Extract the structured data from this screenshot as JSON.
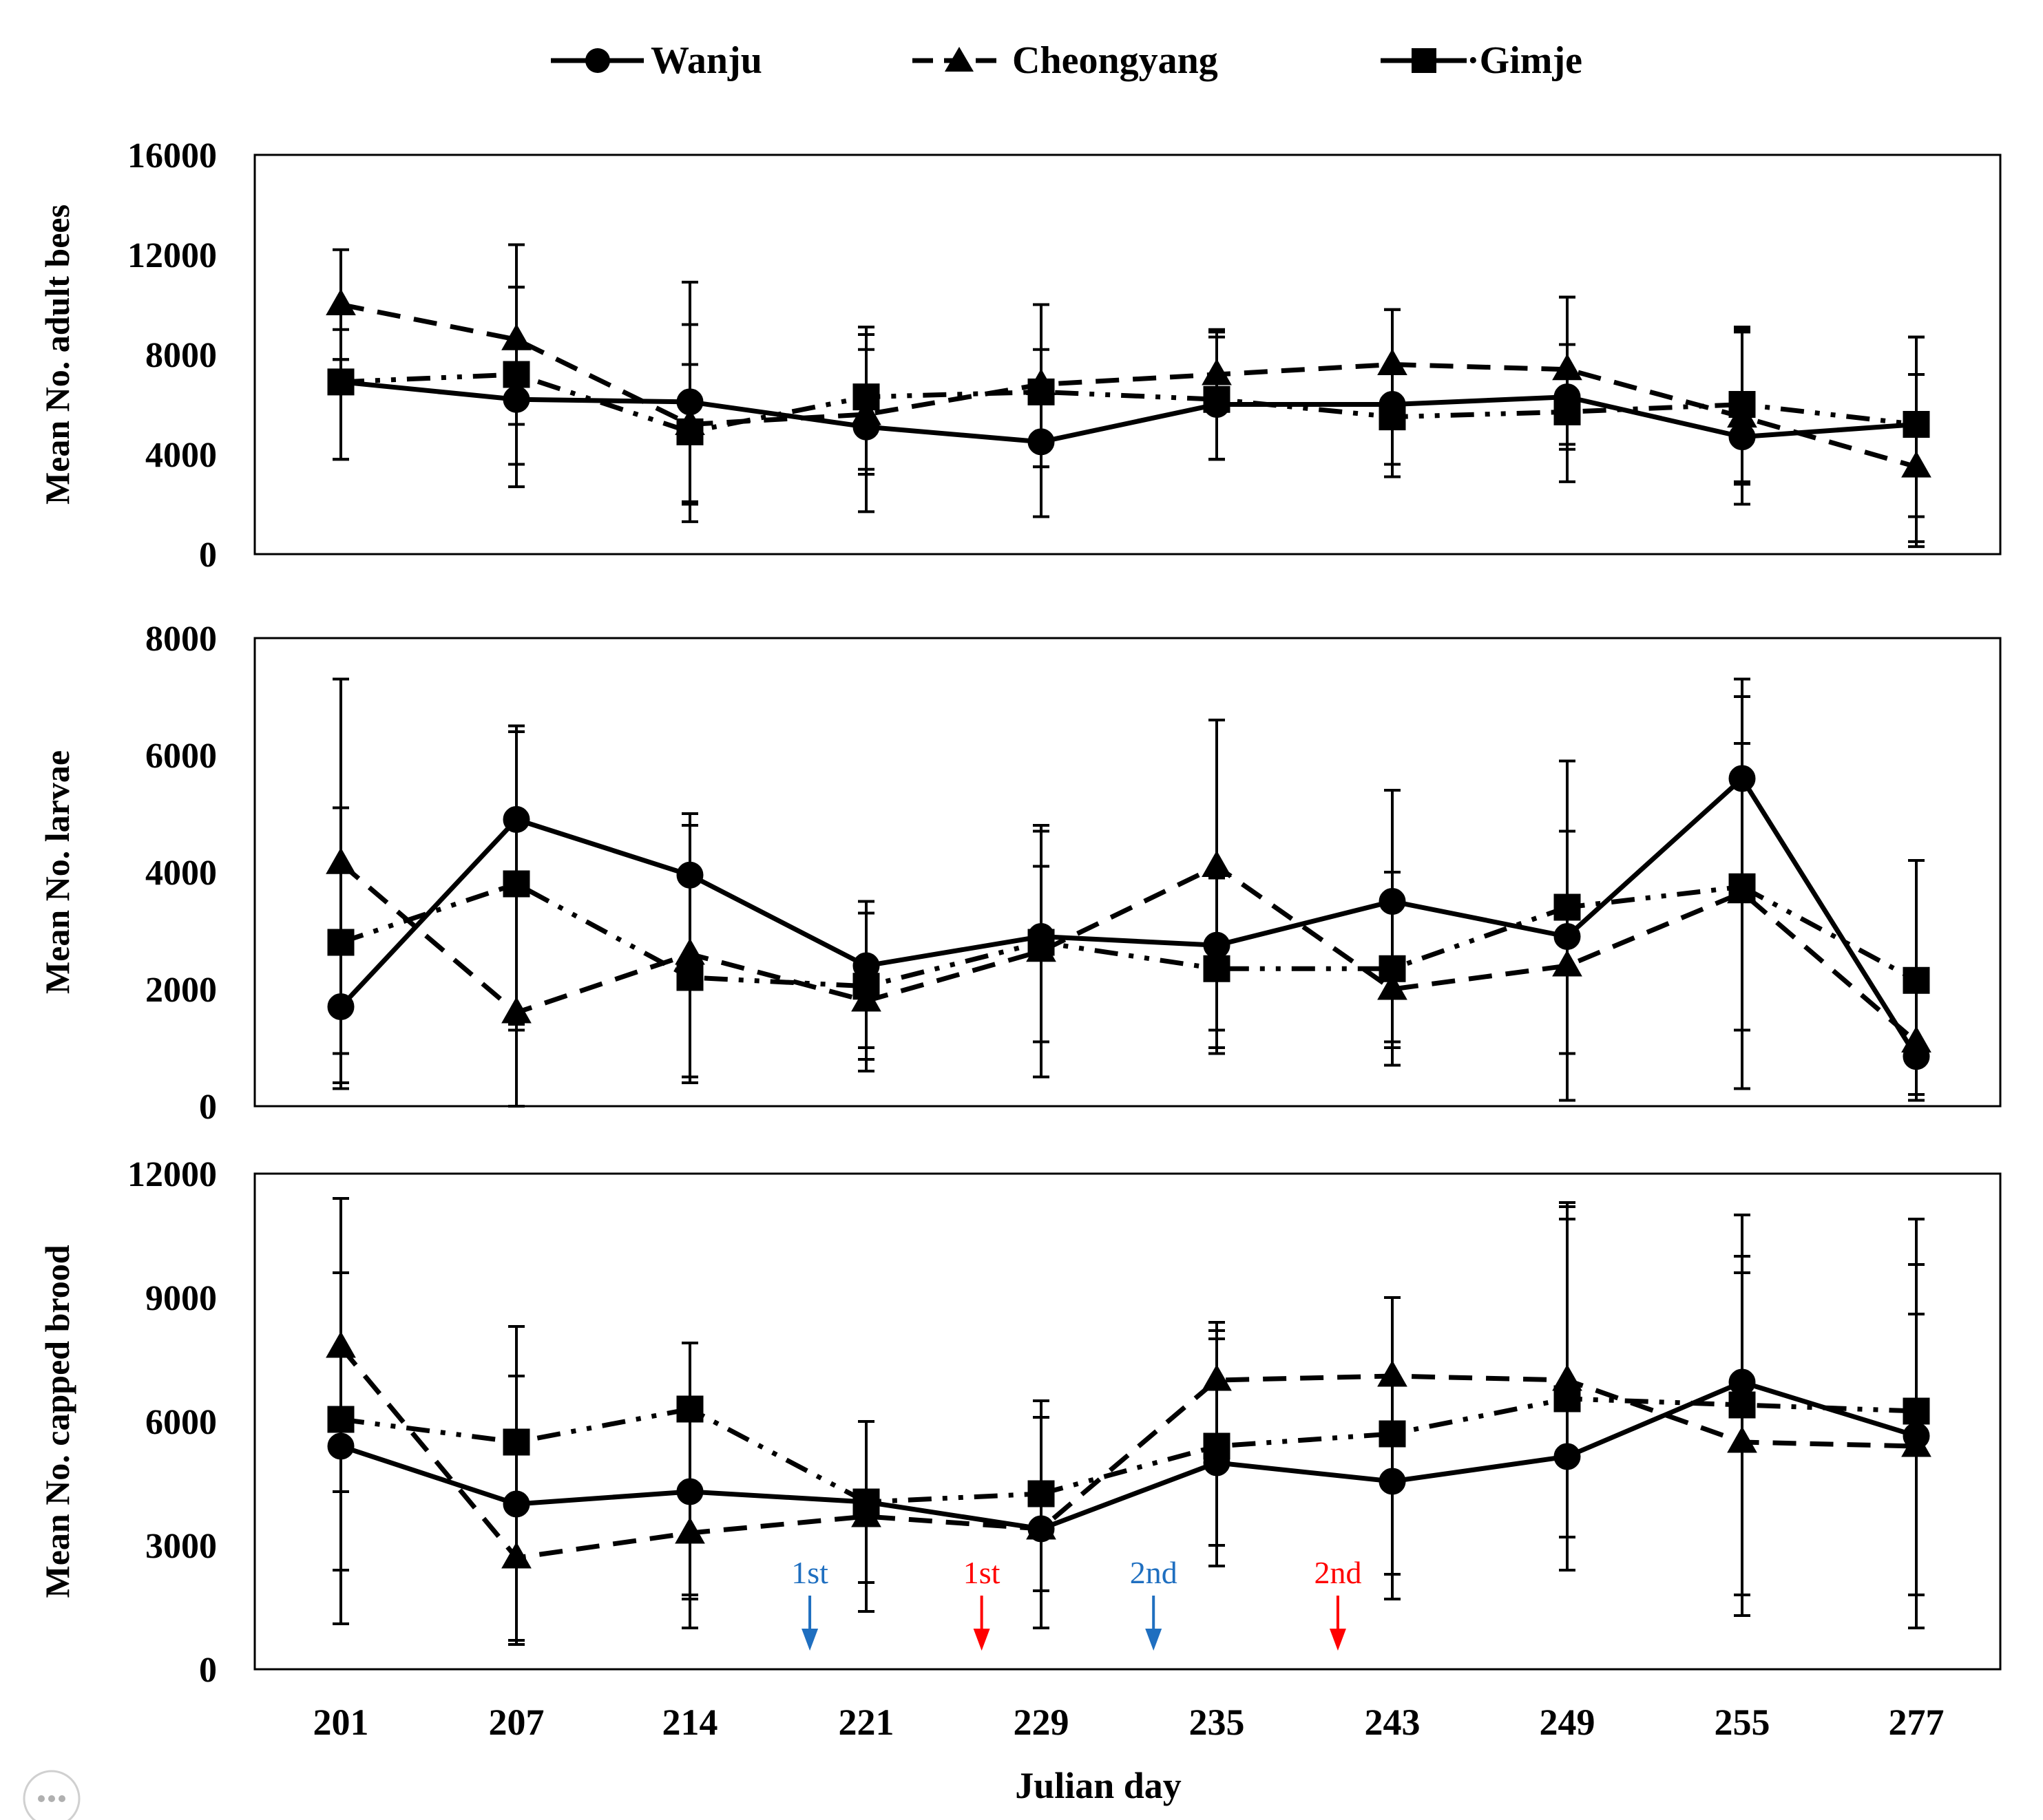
{
  "chart_data": [
    {
      "type": "line",
      "panel": "adult-bees",
      "ylabel": "Mean No. adult bees",
      "ylim": [
        0,
        16000
      ],
      "yticks": [
        "0",
        "4000",
        "8000",
        "12000",
        "16000"
      ],
      "x": [
        "201",
        "207",
        "214",
        "221",
        "229",
        "235",
        "243",
        "249",
        "255",
        "277"
      ],
      "series": [
        {
          "name": "Wanju",
          "values": [
            6900,
            6200,
            6100,
            5100,
            4500,
            6000,
            6000,
            6300,
            4700,
            5200
          ],
          "lower": [
            3800,
            2700,
            2100,
            1700,
            1500,
            3800,
            3100,
            2900,
            2000,
            300
          ],
          "upper": [
            7800,
            10700,
            10900,
            9100,
            10000,
            9000,
            9800,
            10300,
            9000,
            7200
          ]
        },
        {
          "name": "Cheongyang",
          "values": [
            10000,
            8600,
            5200,
            5600,
            6800,
            7200,
            7600,
            7400,
            5500,
            3500
          ],
          "lower": [
            7800,
            5200,
            1300,
            3200,
            3500,
            3800,
            3600,
            4200,
            2800,
            500
          ],
          "upper": [
            12200,
            12400,
            9200,
            8200,
            10000,
            8900,
            9800,
            10300,
            8900,
            8700
          ]
        },
        {
          "name": "Gimje",
          "values": [
            6900,
            7200,
            4900,
            6300,
            6500,
            6200,
            5500,
            5700,
            6000,
            5200
          ],
          "lower": [
            3800,
            3600,
            2000,
            3400,
            3500,
            3800,
            3600,
            4400,
            2900,
            1500
          ],
          "upper": [
            9000,
            10700,
            7600,
            8800,
            8200,
            8700,
            7600,
            8400,
            9100,
            8700
          ]
        }
      ]
    },
    {
      "type": "line",
      "panel": "larvae",
      "ylabel": "Mean No. larvae",
      "ylim": [
        0,
        8000
      ],
      "yticks": [
        "0",
        "2000",
        "4000",
        "6000",
        "8000"
      ],
      "x": [
        "201",
        "207",
        "214",
        "221",
        "229",
        "235",
        "243",
        "249",
        "255",
        "277"
      ],
      "series": [
        {
          "name": "Wanju",
          "values": [
            1700,
            4900,
            3950,
            2400,
            2900,
            2750,
            3500,
            2900,
            5600,
            850
          ],
          "lower": [
            400,
            1300,
            500,
            800,
            500,
            1000,
            700,
            100,
            300,
            200
          ],
          "upper": [
            7300,
            6400,
            5000,
            3500,
            4800,
            4000,
            5400,
            5900,
            7300,
            4200
          ]
        },
        {
          "name": "Cheongyang",
          "values": [
            4150,
            1600,
            2600,
            1800,
            2650,
            4100,
            2000,
            2400,
            3650,
            1100
          ],
          "lower": [
            300,
            0,
            400,
            1000,
            500,
            1300,
            1000,
            100,
            1300,
            100
          ],
          "upper": [
            5100,
            6500,
            4800,
            3300,
            4700,
            6600,
            4000,
            4700,
            7000,
            4200
          ]
        },
        {
          "name": "Gimje",
          "values": [
            2800,
            3800,
            2200,
            2050,
            2800,
            2350,
            2350,
            3400,
            3750,
            2150
          ],
          "lower": [
            900,
            1400,
            500,
            600,
            1100,
            900,
            1100,
            900,
            1300,
            100
          ],
          "upper": [
            5100,
            6400,
            5000,
            3300,
            4100,
            3900,
            4000,
            5900,
            6200,
            4200
          ]
        }
      ]
    },
    {
      "type": "line",
      "panel": "capped-brood",
      "ylabel": "Mean No. capped brood",
      "xlabel": "Julian day",
      "ylim": [
        0,
        12000
      ],
      "yticks": [
        "0",
        "3000",
        "6000",
        "9000",
        "12000"
      ],
      "x": [
        "201",
        "207",
        "214",
        "221",
        "229",
        "235",
        "243",
        "249",
        "255",
        "277"
      ],
      "series": [
        {
          "name": "Wanju",
          "values": [
            5400,
            4000,
            4300,
            4050,
            3400,
            5000,
            4550,
            5150,
            6950,
            5650
          ],
          "lower": [
            1100,
            700,
            1000,
            1400,
            1000,
            2500,
            1700,
            2400,
            1300,
            1000
          ],
          "upper": [
            9600,
            7100,
            7900,
            6000,
            6100,
            8200,
            9000,
            10900,
            10000,
            9800
          ]
        },
        {
          "name": "Cheongyang",
          "values": [
            7800,
            2700,
            3300,
            3700,
            3400,
            7000,
            7100,
            7000,
            5500,
            5400
          ],
          "lower": [
            2400,
            600,
            1800,
            2100,
            1900,
            3000,
            2300,
            3200,
            1800,
            1800
          ],
          "upper": [
            11400,
            8300,
            6500,
            6000,
            6500,
            8400,
            9000,
            11300,
            11000,
            10900
          ]
        },
        {
          "name": "Gimje",
          "values": [
            6050,
            5500,
            6300,
            4050,
            4250,
            5400,
            5700,
            6550,
            6400,
            6250
          ],
          "lower": [
            4300,
            700,
            1700,
            1400,
            1000,
            2500,
            2300,
            2400,
            1300,
            1000
          ],
          "upper": [
            9600,
            8300,
            7900,
            6000,
            6500,
            8000,
            9000,
            11200,
            9600,
            8600
          ]
        }
      ],
      "annotations": [
        {
          "text": "1st",
          "color": "#1F6FC0",
          "x_between": [
            "214",
            "221"
          ],
          "frac": 0.68
        },
        {
          "text": "1st",
          "color": "#FF0000",
          "x_between": [
            "221",
            "229"
          ],
          "frac": 0.66
        },
        {
          "text": "2nd",
          "color": "#1F6FC0",
          "x_between": [
            "229",
            "235"
          ],
          "frac": 0.64
        },
        {
          "text": "2nd",
          "color": "#FF0000",
          "x_between": [
            "235",
            "243"
          ],
          "frac": 0.69
        }
      ]
    }
  ],
  "legend": {
    "placement": "top-center",
    "items": [
      {
        "name": "Wanju",
        "marker": "circle",
        "line": "solid"
      },
      {
        "name": "Cheongyang",
        "marker": "triangle",
        "line": "dashed"
      },
      {
        "name": "Gimje",
        "marker": "square",
        "line": "dash-dot-dot",
        "label": "·Gimje"
      }
    ]
  },
  "xlabel": "Julian day"
}
